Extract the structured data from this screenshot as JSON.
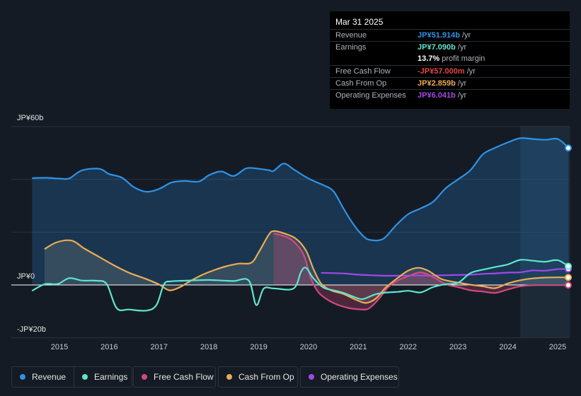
{
  "chart_data": {
    "type": "area",
    "currency": "JP¥",
    "x_ticks": [
      "2015",
      "2016",
      "2017",
      "2018",
      "2019",
      "2020",
      "2021",
      "2022",
      "2023",
      "2024",
      "2025"
    ],
    "y_labels": {
      "top": "JP¥60b",
      "zero": "JP¥0",
      "bottom": "-JP¥20b"
    },
    "ylim": [
      -20,
      60
    ],
    "legend_position": "bottom",
    "series": [
      {
        "name": "Revenue",
        "color": "#2e93e8",
        "points": [
          [
            2014.45,
            40.5
          ],
          [
            2014.75,
            40.6
          ],
          [
            2015.0,
            40.3
          ],
          [
            2015.2,
            40.4
          ],
          [
            2015.45,
            43.4
          ],
          [
            2015.8,
            44.0
          ],
          [
            2016.0,
            42.0
          ],
          [
            2016.25,
            40.7
          ],
          [
            2016.5,
            37.0
          ],
          [
            2016.75,
            35.3
          ],
          [
            2017.0,
            36.4
          ],
          [
            2017.25,
            38.8
          ],
          [
            2017.5,
            39.4
          ],
          [
            2017.8,
            39.2
          ],
          [
            2018.0,
            41.6
          ],
          [
            2018.25,
            43.0
          ],
          [
            2018.5,
            41.3
          ],
          [
            2018.75,
            44.2
          ],
          [
            2019.0,
            44.0
          ],
          [
            2019.2,
            43.5
          ],
          [
            2019.3,
            43.2
          ],
          [
            2019.5,
            46.0
          ],
          [
            2019.7,
            43.8
          ],
          [
            2019.9,
            41.4
          ],
          [
            2020.1,
            39.4
          ],
          [
            2020.3,
            37.8
          ],
          [
            2020.5,
            35.5
          ],
          [
            2020.7,
            29.0
          ],
          [
            2020.9,
            23.0
          ],
          [
            2021.1,
            18.5
          ],
          [
            2021.25,
            17.0
          ],
          [
            2021.5,
            17.5
          ],
          [
            2021.75,
            22.5
          ],
          [
            2022.0,
            26.8
          ],
          [
            2022.25,
            29.0
          ],
          [
            2022.5,
            31.5
          ],
          [
            2022.75,
            36.6
          ],
          [
            2023.0,
            40.0
          ],
          [
            2023.25,
            43.5
          ],
          [
            2023.5,
            49.5
          ],
          [
            2023.75,
            52.0
          ],
          [
            2024.0,
            54.0
          ],
          [
            2024.25,
            55.6
          ],
          [
            2024.5,
            55.3
          ],
          [
            2024.75,
            55.0
          ],
          [
            2025.0,
            55.3
          ],
          [
            2025.22,
            51.9
          ]
        ]
      },
      {
        "name": "Earnings",
        "color": "#5ee6cf",
        "points": [
          [
            2014.45,
            -2.2
          ],
          [
            2014.7,
            0.3
          ],
          [
            2014.9,
            0.3
          ],
          [
            2015.0,
            0.6
          ],
          [
            2015.2,
            2.6
          ],
          [
            2015.45,
            1.7
          ],
          [
            2015.75,
            1.6
          ],
          [
            2015.95,
            0.3
          ],
          [
            2016.15,
            -8.8
          ],
          [
            2016.4,
            -9.3
          ],
          [
            2016.75,
            -9.7
          ],
          [
            2016.95,
            -7.5
          ],
          [
            2017.1,
            0.3
          ],
          [
            2017.25,
            1.4
          ],
          [
            2017.5,
            1.6
          ],
          [
            2017.75,
            1.8
          ],
          [
            2018.0,
            1.9
          ],
          [
            2018.25,
            1.7
          ],
          [
            2018.5,
            1.5
          ],
          [
            2018.8,
            1.7
          ],
          [
            2018.95,
            -7.6
          ],
          [
            2019.1,
            -1.4
          ],
          [
            2019.3,
            -1.3
          ],
          [
            2019.7,
            -1.3
          ],
          [
            2019.85,
            5.0
          ],
          [
            2019.95,
            6.5
          ],
          [
            2020.1,
            2.5
          ],
          [
            2020.3,
            -1.0
          ],
          [
            2020.5,
            -2.0
          ],
          [
            2020.7,
            -3.0
          ],
          [
            2020.95,
            -4.8
          ],
          [
            2021.1,
            -5.3
          ],
          [
            2021.35,
            -3.5
          ],
          [
            2021.6,
            -2.8
          ],
          [
            2021.8,
            -2.6
          ],
          [
            2022.0,
            -2.2
          ],
          [
            2022.25,
            -2.8
          ],
          [
            2022.5,
            -0.8
          ],
          [
            2022.75,
            0.3
          ],
          [
            2023.0,
            0.8
          ],
          [
            2023.25,
            4.5
          ],
          [
            2023.5,
            5.8
          ],
          [
            2023.75,
            6.8
          ],
          [
            2024.0,
            7.8
          ],
          [
            2024.25,
            9.5
          ],
          [
            2024.5,
            9.2
          ],
          [
            2024.75,
            8.8
          ],
          [
            2025.0,
            9.4
          ],
          [
            2025.22,
            7.1
          ]
        ]
      },
      {
        "name": "Free Cash Flow",
        "color": "#d3497f",
        "points": [
          [
            2019.3,
            19.5
          ],
          [
            2019.5,
            18.6
          ],
          [
            2019.7,
            16.5
          ],
          [
            2019.9,
            11.5
          ],
          [
            2020.05,
            2.5
          ],
          [
            2020.2,
            -2.8
          ],
          [
            2020.4,
            -5.8
          ],
          [
            2020.6,
            -7.6
          ],
          [
            2020.8,
            -8.7
          ],
          [
            2021.0,
            -9.2
          ],
          [
            2021.2,
            -9.0
          ],
          [
            2021.4,
            -5.5
          ],
          [
            2021.6,
            -0.8
          ],
          [
            2021.8,
            1.8
          ],
          [
            2022.0,
            3.3
          ],
          [
            2022.25,
            4.8
          ],
          [
            2022.5,
            3.0
          ],
          [
            2022.75,
            0.3
          ],
          [
            2023.0,
            -0.8
          ],
          [
            2023.25,
            -2.0
          ],
          [
            2023.5,
            -2.5
          ],
          [
            2023.75,
            -3.0
          ],
          [
            2024.0,
            -1.7
          ],
          [
            2024.25,
            -0.5
          ],
          [
            2024.5,
            -0.1
          ],
          [
            2024.75,
            -0.06
          ],
          [
            2025.0,
            -0.06
          ],
          [
            2025.22,
            -0.06
          ]
        ]
      },
      {
        "name": "Cash From Op",
        "color": "#eaac55",
        "points": [
          [
            2014.7,
            13.6
          ],
          [
            2014.95,
            16.2
          ],
          [
            2015.25,
            16.8
          ],
          [
            2015.5,
            13.8
          ],
          [
            2015.8,
            10.6
          ],
          [
            2016.1,
            7.4
          ],
          [
            2016.4,
            4.6
          ],
          [
            2016.75,
            2.2
          ],
          [
            2017.0,
            0.2
          ],
          [
            2017.2,
            -2.0
          ],
          [
            2017.4,
            -1.0
          ],
          [
            2017.6,
            1.2
          ],
          [
            2017.85,
            3.7
          ],
          [
            2018.1,
            5.6
          ],
          [
            2018.35,
            7.1
          ],
          [
            2018.6,
            8.1
          ],
          [
            2018.85,
            8.4
          ],
          [
            2019.0,
            12.4
          ],
          [
            2019.2,
            19.0
          ],
          [
            2019.3,
            20.4
          ],
          [
            2019.5,
            19.6
          ],
          [
            2019.75,
            17.5
          ],
          [
            2019.95,
            13.0
          ],
          [
            2020.1,
            6.0
          ],
          [
            2020.25,
            0.6
          ],
          [
            2020.45,
            -2.0
          ],
          [
            2020.7,
            -3.4
          ],
          [
            2020.95,
            -5.6
          ],
          [
            2021.15,
            -6.8
          ],
          [
            2021.35,
            -5.2
          ],
          [
            2021.55,
            -1.0
          ],
          [
            2021.8,
            2.8
          ],
          [
            2022.0,
            5.4
          ],
          [
            2022.2,
            6.5
          ],
          [
            2022.4,
            5.4
          ],
          [
            2022.65,
            2.4
          ],
          [
            2022.85,
            1.4
          ],
          [
            2023.0,
            0.9
          ],
          [
            2023.25,
            0.1
          ],
          [
            2023.5,
            -0.5
          ],
          [
            2023.75,
            -1.2
          ],
          [
            2024.0,
            0.6
          ],
          [
            2024.25,
            1.8
          ],
          [
            2024.5,
            2.5
          ],
          [
            2024.75,
            2.8
          ],
          [
            2025.0,
            2.9
          ],
          [
            2025.22,
            2.86
          ]
        ]
      },
      {
        "name": "Operating Expenses",
        "color": "#a048e8",
        "points": [
          [
            2020.25,
            4.6
          ],
          [
            2020.5,
            4.5
          ],
          [
            2020.75,
            4.3
          ],
          [
            2021.0,
            3.9
          ],
          [
            2021.25,
            3.7
          ],
          [
            2021.5,
            3.5
          ],
          [
            2021.75,
            3.5
          ],
          [
            2022.0,
            3.6
          ],
          [
            2022.25,
            3.6
          ],
          [
            2022.5,
            3.6
          ],
          [
            2022.75,
            3.7
          ],
          [
            2023.0,
            3.8
          ],
          [
            2023.25,
            3.9
          ],
          [
            2023.5,
            4.2
          ],
          [
            2023.75,
            4.4
          ],
          [
            2024.0,
            4.7
          ],
          [
            2024.25,
            4.8
          ],
          [
            2024.5,
            5.5
          ],
          [
            2024.75,
            5.4
          ],
          [
            2025.0,
            6.0
          ],
          [
            2025.22,
            6.04
          ]
        ]
      }
    ]
  },
  "tooltip": {
    "date": "Mar 31 2025",
    "rows": [
      {
        "label": "Revenue",
        "value": "JP¥51.914b",
        "unit": " /yr",
        "color": "#2e93e8"
      },
      {
        "label": "Earnings",
        "value": "JP¥7.090b",
        "unit": " /yr",
        "color": "#5ee6cf"
      },
      {
        "label": "",
        "value": "13.7%",
        "unit": " profit margin",
        "color": "#ffffff"
      },
      {
        "label": "Free Cash Flow",
        "value": "-JP¥57.000m",
        "unit": " /yr",
        "color": "#e64545"
      },
      {
        "label": "Cash From Op",
        "value": "JP¥2.859b",
        "unit": " /yr",
        "color": "#eaac55"
      },
      {
        "label": "Operating Expenses",
        "value": "JP¥6.041b",
        "unit": " /yr",
        "color": "#a048e8"
      }
    ]
  },
  "legend": [
    {
      "label": "Revenue",
      "color": "#2e93e8"
    },
    {
      "label": "Earnings",
      "color": "#5ee6cf"
    },
    {
      "label": "Free Cash Flow",
      "color": "#d3497f"
    },
    {
      "label": "Cash From Op",
      "color": "#eaac55"
    },
    {
      "label": "Operating Expenses",
      "color": "#a048e8"
    }
  ]
}
